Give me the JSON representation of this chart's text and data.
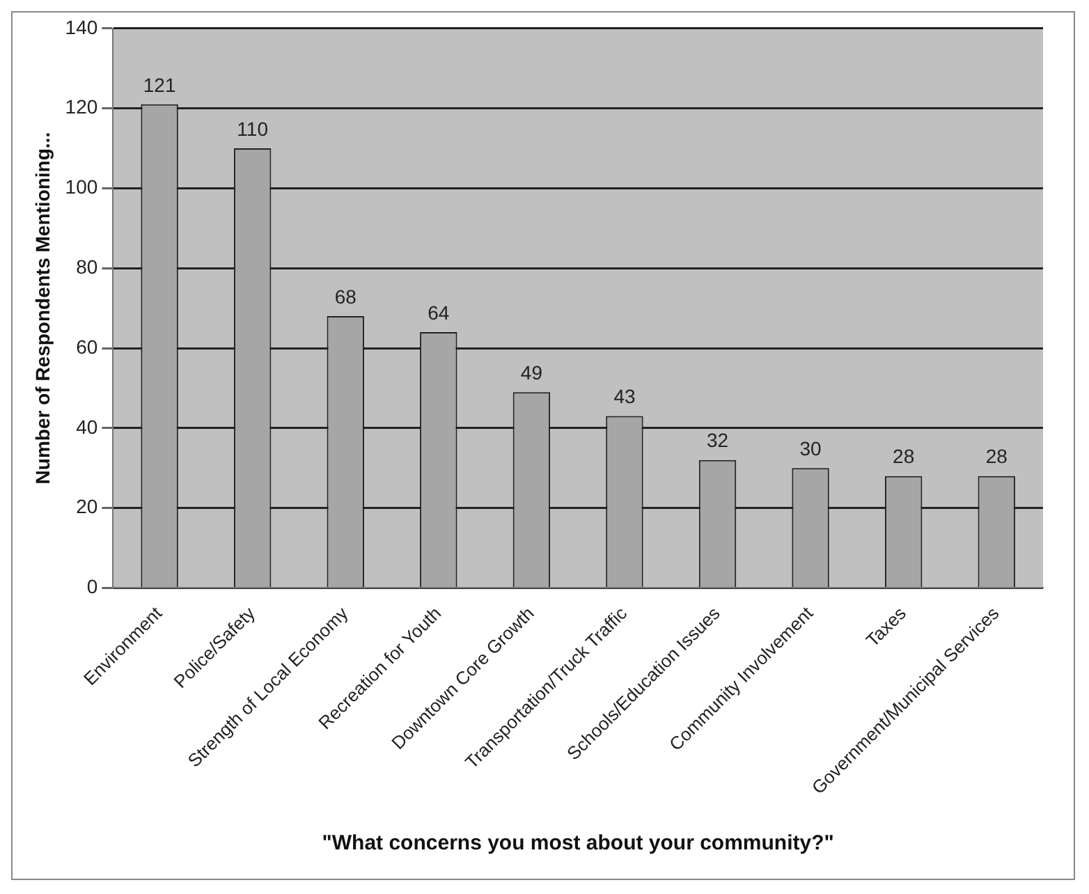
{
  "chart_data": {
    "type": "bar",
    "categories": [
      "Environment",
      "Police/Safety",
      "Strength of Local Economy",
      "Recreation for Youth",
      "Downtown Core Growth",
      "Transportation/Truck Traffic",
      "Schools/Education Issues",
      "Community Involvement",
      "Taxes",
      "Government/Municipal Services"
    ],
    "values": [
      121,
      110,
      68,
      64,
      49,
      43,
      32,
      30,
      28,
      28
    ],
    "color": "#a6a6a6",
    "xlabel": "\"What concerns you most about your community?\"",
    "ylabel": "Number of Respondents Mentioning...",
    "ylim": [
      0,
      140
    ],
    "yticks": [
      0,
      20,
      40,
      60,
      80,
      100,
      120,
      140
    ],
    "grid": "y",
    "data_labels": true,
    "legend": false
  }
}
